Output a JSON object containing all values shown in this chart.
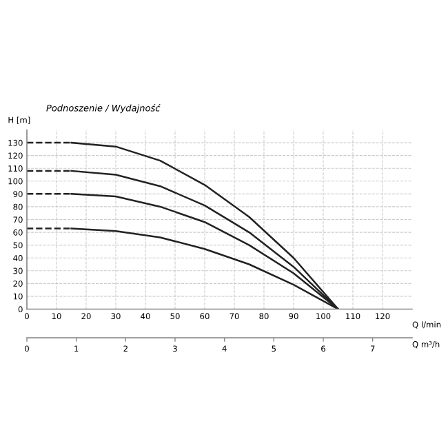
{
  "chart_data": {
    "type": "line",
    "title": "Podnoszenie / Wydajność",
    "xlabel": "Q l/min",
    "ylabel": "H [m]",
    "x2label": "Q m³/h",
    "series": [
      {
        "color": "#222222",
        "x": [
          15,
          30,
          45,
          60,
          75,
          90,
          105
        ],
        "values": [
          130,
          127,
          116,
          97,
          72,
          40,
          0
        ]
      },
      {
        "color": "#222222",
        "x": [
          15,
          30,
          45,
          60,
          75,
          90,
          105
        ],
        "values": [
          108,
          105,
          96,
          81,
          60,
          33,
          0
        ]
      },
      {
        "color": "#222222",
        "x": [
          15,
          30,
          45,
          60,
          75,
          90,
          105
        ],
        "values": [
          90,
          88,
          80,
          68,
          50,
          28,
          0
        ]
      },
      {
        "color": "#222222",
        "x": [
          15,
          30,
          45,
          60,
          75,
          90,
          105
        ],
        "values": [
          63,
          61,
          56,
          47,
          35,
          19,
          0
        ]
      },
      {
        "color": "#222222",
        "x": [
          0,
          15
        ],
        "values": [
          130,
          130
        ],
        "line_style": "dashed"
      },
      {
        "color": "#222222",
        "x": [
          0,
          15
        ],
        "values": [
          108,
          108
        ],
        "line_style": "dashed"
      },
      {
        "color": "#222222",
        "x": [
          0,
          15
        ],
        "values": [
          90,
          90
        ],
        "line_style": "dashed"
      },
      {
        "color": "#222222",
        "x": [
          0,
          15
        ],
        "values": [
          63,
          63
        ],
        "line_style": "dashed"
      }
    ],
    "xlim": [
      0,
      130
    ],
    "xticks": [
      0,
      10,
      20,
      30,
      40,
      50,
      60,
      70,
      80,
      90,
      100,
      110,
      120
    ],
    "ylim": [
      0,
      140
    ],
    "yticks": [
      0,
      10,
      20,
      30,
      40,
      50,
      60,
      70,
      80,
      90,
      100,
      110,
      120,
      130
    ],
    "x2lim": [
      0,
      7.8
    ],
    "x2ticks": [
      0,
      1,
      2,
      3,
      4,
      5,
      6,
      7
    ],
    "grid": true,
    "marker": "none",
    "line_style": "solid"
  }
}
